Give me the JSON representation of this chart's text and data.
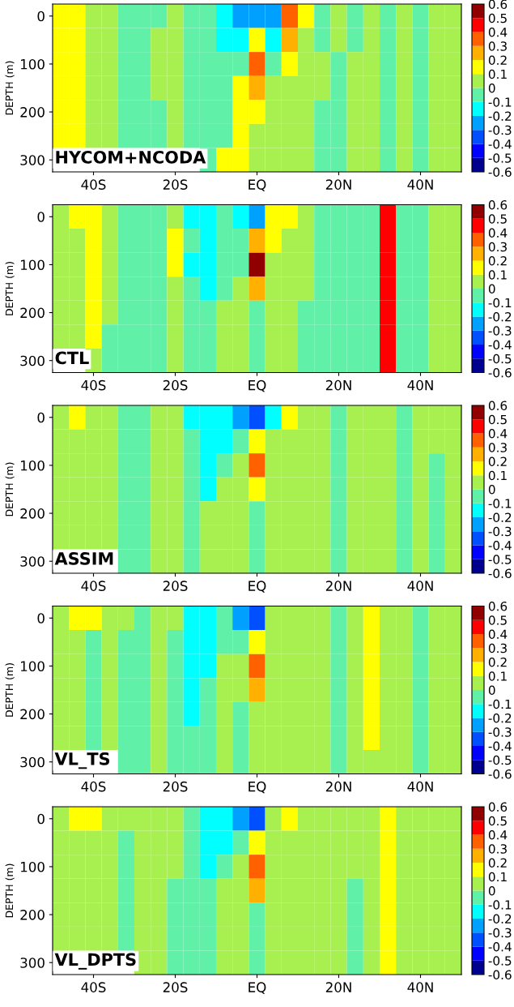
{
  "chart_data": [
    {
      "type": "heatmap",
      "ylabel": "DEPTH (m)",
      "annotations": [
        "HYCOM+NCODA"
      ],
      "categories": [
        null,
        null,
        "40S",
        null,
        null,
        null,
        null,
        "20S",
        null,
        null,
        null,
        null,
        "EQ",
        null,
        null,
        null,
        null,
        "20N",
        null,
        null,
        null,
        null,
        "40N",
        null,
        null
      ],
      "y_categories": [
        "0",
        null,
        "100",
        null,
        "200",
        null,
        "300"
      ],
      "clim": [
        -0.6,
        0.6
      ],
      "cticks": [
        -0.6,
        -0.5,
        -0.4,
        -0.3,
        -0.2,
        -0.1,
        0,
        0.1,
        0.2,
        0.3,
        0.4,
        0.5,
        0.6
      ],
      "cells": [
        [
          0.15,
          0.15,
          0.05,
          0.05,
          -0.05,
          -0.05,
          -0.05,
          0.05,
          -0.05,
          -0.05,
          -0.15,
          -0.25,
          -0.25,
          -0.25,
          0.35,
          0.15,
          -0.05,
          0.05,
          -0.05,
          0.05,
          -0.05,
          0.05,
          -0.05,
          0.05,
          0.05
        ],
        [
          0.15,
          0.15,
          0.05,
          0.05,
          -0.05,
          -0.05,
          0.05,
          0.05,
          -0.05,
          -0.05,
          -0.15,
          -0.15,
          0.15,
          -0.15,
          0.25,
          0.05,
          -0.05,
          0.05,
          -0.05,
          0.05,
          -0.05,
          0.05,
          -0.05,
          0.05,
          0.05
        ],
        [
          0.15,
          0.15,
          0.05,
          0.05,
          -0.05,
          -0.05,
          0.05,
          0.05,
          -0.05,
          -0.05,
          -0.05,
          -0.05,
          0.35,
          -0.05,
          0.15,
          0.05,
          0.05,
          -0.05,
          0.05,
          0.05,
          -0.05,
          0.05,
          -0.05,
          0.05,
          0.05
        ],
        [
          0.15,
          0.15,
          0.05,
          0.05,
          -0.05,
          -0.05,
          0.05,
          0.05,
          -0.05,
          -0.05,
          -0.05,
          0.15,
          0.25,
          0.05,
          0.05,
          0.05,
          0.05,
          -0.05,
          0.05,
          0.05,
          -0.05,
          0.05,
          -0.05,
          0.05,
          0.05
        ],
        [
          0.15,
          0.15,
          0.05,
          0.05,
          -0.05,
          -0.05,
          -0.05,
          0.05,
          -0.05,
          -0.05,
          -0.05,
          0.15,
          0.15,
          0.05,
          0.05,
          0.05,
          -0.05,
          -0.05,
          0.05,
          0.05,
          -0.05,
          0.05,
          -0.05,
          0.05,
          0.05
        ],
        [
          0.15,
          0.15,
          0.05,
          0.05,
          -0.05,
          -0.05,
          -0.05,
          0.05,
          -0.05,
          -0.05,
          -0.05,
          0.15,
          0.05,
          0.05,
          0.05,
          0.05,
          -0.05,
          -0.05,
          0.05,
          0.05,
          -0.05,
          0.05,
          -0.05,
          0.05,
          0.05
        ],
        [
          null,
          null,
          null,
          null,
          null,
          null,
          null,
          null,
          null,
          -0.05,
          0.15,
          0.15,
          0.05,
          0.05,
          0.05,
          0.05,
          -0.05,
          -0.05,
          0.05,
          0.05,
          -0.05,
          0.05,
          -0.05,
          0.05,
          0.05
        ]
      ]
    },
    {
      "type": "heatmap",
      "ylabel": "DEPTH (m)",
      "annotations": [
        "CTL"
      ],
      "categories": [
        null,
        null,
        "40S",
        null,
        null,
        null,
        null,
        "20S",
        null,
        null,
        null,
        null,
        "EQ",
        null,
        null,
        null,
        null,
        "20N",
        null,
        null,
        null,
        null,
        "40N",
        null,
        null
      ],
      "y_categories": [
        "0",
        null,
        "100",
        null,
        "200",
        null,
        "300"
      ],
      "clim": [
        -0.6,
        0.6
      ],
      "cticks": [
        -0.6,
        -0.5,
        -0.4,
        -0.3,
        -0.2,
        -0.1,
        0,
        0.1,
        0.2,
        0.3,
        0.4,
        0.5,
        0.6
      ],
      "cells": [
        [
          0.05,
          0.15,
          0.15,
          0.05,
          -0.05,
          -0.05,
          -0.05,
          0.05,
          -0.15,
          -0.15,
          -0.05,
          -0.15,
          -0.25,
          0.15,
          0.15,
          0.05,
          -0.05,
          -0.05,
          -0.05,
          -0.05,
          0.45,
          -0.05,
          -0.05,
          0.05,
          0.05
        ],
        [
          0.05,
          0.05,
          0.15,
          0.05,
          -0.05,
          -0.05,
          -0.05,
          0.15,
          -0.05,
          -0.15,
          -0.05,
          -0.05,
          0.25,
          0.15,
          0.05,
          0.05,
          -0.05,
          -0.05,
          -0.05,
          -0.05,
          0.45,
          -0.05,
          -0.05,
          0.05,
          0.05
        ],
        [
          0.05,
          0.05,
          0.15,
          0.05,
          -0.05,
          -0.05,
          -0.05,
          0.15,
          -0.15,
          -0.15,
          -0.05,
          -0.05,
          0.55,
          0.05,
          0.05,
          0.05,
          -0.05,
          -0.05,
          -0.05,
          -0.05,
          0.45,
          -0.05,
          -0.05,
          0.05,
          0.05
        ],
        [
          0.05,
          0.05,
          0.15,
          0.05,
          -0.05,
          -0.05,
          -0.05,
          0.05,
          -0.05,
          -0.15,
          -0.05,
          0.05,
          0.25,
          0.05,
          0.05,
          0.05,
          -0.05,
          -0.05,
          -0.05,
          -0.05,
          0.45,
          -0.05,
          -0.05,
          0.05,
          0.05
        ],
        [
          0.05,
          0.05,
          0.15,
          0.05,
          -0.05,
          -0.05,
          -0.05,
          0.05,
          -0.05,
          -0.05,
          0.05,
          0.05,
          -0.05,
          0.05,
          0.05,
          -0.05,
          -0.05,
          -0.05,
          -0.05,
          -0.05,
          0.45,
          -0.05,
          -0.05,
          0.05,
          0.05
        ],
        [
          0.05,
          0.05,
          0.15,
          -0.05,
          -0.05,
          -0.05,
          -0.05,
          0.05,
          -0.05,
          -0.05,
          0.05,
          0.05,
          -0.05,
          0.05,
          0.05,
          -0.05,
          -0.05,
          -0.05,
          -0.05,
          -0.05,
          0.45,
          -0.05,
          -0.05,
          0.05,
          0.05
        ],
        [
          null,
          null,
          0.05,
          -0.05,
          -0.05,
          -0.05,
          -0.05,
          0.05,
          -0.05,
          -0.05,
          0.05,
          0.05,
          -0.05,
          0.05,
          0.05,
          -0.05,
          -0.05,
          -0.05,
          -0.05,
          -0.05,
          0.45,
          -0.05,
          -0.05,
          0.05,
          0.05
        ]
      ]
    },
    {
      "type": "heatmap",
      "ylabel": "DEPTH (m)",
      "annotations": [
        "ASSIM"
      ],
      "categories": [
        null,
        null,
        "40S",
        null,
        null,
        null,
        null,
        "20S",
        null,
        null,
        null,
        null,
        "EQ",
        null,
        null,
        null,
        null,
        "20N",
        null,
        null,
        null,
        null,
        "40N",
        null,
        null
      ],
      "y_categories": [
        "0",
        null,
        "100",
        null,
        "200",
        null,
        "300"
      ],
      "clim": [
        -0.6,
        0.6
      ],
      "cticks": [
        -0.6,
        -0.5,
        -0.4,
        -0.3,
        -0.2,
        -0.1,
        0,
        0.1,
        0.2,
        0.3,
        0.4,
        0.5,
        0.6
      ],
      "cells": [
        [
          0.05,
          0.15,
          0.05,
          0.05,
          -0.05,
          -0.05,
          0.05,
          0.05,
          -0.15,
          -0.15,
          -0.15,
          -0.25,
          -0.35,
          -0.15,
          0.15,
          0.05,
          0.05,
          -0.05,
          0.05,
          0.05,
          0.05,
          -0.05,
          0.05,
          0.05,
          0.05
        ],
        [
          0.05,
          0.05,
          0.05,
          0.05,
          -0.05,
          -0.05,
          0.05,
          0.05,
          -0.05,
          -0.15,
          -0.15,
          -0.05,
          0.15,
          0.05,
          0.05,
          0.05,
          0.05,
          -0.05,
          0.05,
          0.05,
          0.05,
          -0.05,
          0.05,
          0.05,
          0.05
        ],
        [
          0.05,
          0.05,
          0.05,
          0.05,
          -0.05,
          -0.05,
          0.05,
          0.05,
          -0.05,
          -0.15,
          -0.05,
          0.05,
          0.35,
          0.05,
          0.05,
          0.05,
          0.05,
          -0.05,
          0.05,
          0.05,
          0.05,
          -0.05,
          0.05,
          -0.05,
          0.05
        ],
        [
          0.05,
          0.05,
          0.05,
          0.05,
          -0.05,
          -0.05,
          0.05,
          0.05,
          -0.05,
          -0.15,
          0.05,
          0.05,
          0.15,
          0.05,
          0.05,
          0.05,
          0.05,
          -0.05,
          0.05,
          0.05,
          0.05,
          -0.05,
          0.05,
          -0.05,
          0.05
        ],
        [
          0.05,
          0.05,
          0.05,
          0.05,
          -0.05,
          -0.05,
          0.05,
          0.05,
          -0.05,
          0.05,
          0.05,
          0.05,
          -0.05,
          0.05,
          0.05,
          0.05,
          0.05,
          -0.05,
          0.05,
          0.05,
          0.05,
          -0.05,
          0.05,
          -0.05,
          0.05
        ],
        [
          0.05,
          0.05,
          0.05,
          0.05,
          -0.05,
          -0.05,
          0.05,
          0.05,
          -0.05,
          0.05,
          0.05,
          0.05,
          -0.05,
          0.05,
          0.05,
          0.05,
          0.05,
          -0.05,
          0.05,
          0.05,
          0.05,
          -0.05,
          0.05,
          -0.05,
          0.05
        ],
        [
          null,
          null,
          null,
          null,
          -0.05,
          -0.05,
          0.05,
          0.05,
          -0.05,
          0.05,
          0.05,
          0.05,
          -0.05,
          0.05,
          0.05,
          0.05,
          0.05,
          -0.05,
          0.05,
          0.05,
          0.05,
          -0.05,
          0.05,
          -0.05,
          0.05
        ]
      ]
    },
    {
      "type": "heatmap",
      "ylabel": "DEPTH (m)",
      "annotations": [
        "VL_TS"
      ],
      "categories": [
        null,
        null,
        "40S",
        null,
        null,
        null,
        null,
        "20S",
        null,
        null,
        null,
        null,
        "EQ",
        null,
        null,
        null,
        null,
        "20N",
        null,
        null,
        null,
        null,
        "40N",
        null,
        null
      ],
      "y_categories": [
        "0",
        null,
        "100",
        null,
        "200",
        null,
        "300"
      ],
      "clim": [
        -0.6,
        0.6
      ],
      "cticks": [
        -0.6,
        -0.5,
        -0.4,
        -0.3,
        -0.2,
        -0.1,
        0,
        0.1,
        0.2,
        0.3,
        0.4,
        0.5,
        0.6
      ],
      "cells": [
        [
          0.05,
          0.15,
          0.15,
          0.05,
          0.05,
          -0.05,
          0.05,
          0.05,
          -0.15,
          -0.15,
          -0.05,
          -0.25,
          -0.35,
          0.05,
          0.05,
          0.05,
          0.05,
          -0.05,
          0.05,
          0.15,
          0.05,
          0.05,
          -0.05,
          0.05,
          0.05
        ],
        [
          0.05,
          0.05,
          -0.05,
          0.05,
          -0.05,
          -0.05,
          0.05,
          -0.05,
          -0.15,
          -0.15,
          -0.05,
          -0.05,
          0.15,
          0.05,
          0.05,
          0.05,
          0.05,
          -0.05,
          0.05,
          0.15,
          0.05,
          0.05,
          -0.05,
          0.05,
          0.05
        ],
        [
          0.05,
          0.05,
          -0.05,
          0.05,
          -0.05,
          -0.05,
          0.05,
          -0.05,
          -0.15,
          -0.15,
          0.05,
          0.05,
          0.35,
          0.05,
          0.05,
          0.05,
          0.05,
          -0.05,
          0.05,
          0.15,
          0.05,
          0.05,
          -0.05,
          0.05,
          0.05
        ],
        [
          0.05,
          0.05,
          -0.05,
          0.05,
          -0.05,
          -0.05,
          0.05,
          -0.05,
          -0.15,
          -0.05,
          0.05,
          0.05,
          0.25,
          0.05,
          0.05,
          0.05,
          0.05,
          -0.05,
          0.05,
          0.15,
          0.05,
          0.05,
          -0.05,
          0.05,
          0.05
        ],
        [
          0.05,
          0.05,
          -0.05,
          0.05,
          -0.05,
          -0.05,
          0.05,
          -0.05,
          -0.15,
          -0.05,
          0.05,
          -0.05,
          0.05,
          0.05,
          0.05,
          0.05,
          0.05,
          -0.05,
          0.05,
          0.15,
          0.05,
          0.05,
          -0.05,
          0.05,
          0.05
        ],
        [
          0.05,
          0.05,
          -0.05,
          0.05,
          -0.05,
          -0.05,
          0.05,
          -0.05,
          -0.05,
          -0.05,
          0.05,
          -0.05,
          0.05,
          0.05,
          0.05,
          0.05,
          0.05,
          -0.05,
          0.05,
          0.15,
          0.05,
          0.05,
          -0.05,
          0.05,
          0.05
        ],
        [
          null,
          null,
          null,
          null,
          -0.05,
          -0.05,
          0.05,
          -0.05,
          -0.05,
          -0.05,
          0.05,
          -0.05,
          0.05,
          0.05,
          0.05,
          0.05,
          0.05,
          -0.05,
          0.05,
          0.05,
          0.05,
          0.05,
          -0.05,
          0.05,
          0.05
        ]
      ]
    },
    {
      "type": "heatmap",
      "ylabel": "DEPTH (m)",
      "annotations": [
        "VL_DPTS"
      ],
      "categories": [
        null,
        null,
        "40S",
        null,
        null,
        null,
        null,
        "20S",
        null,
        null,
        null,
        null,
        "EQ",
        null,
        null,
        null,
        null,
        "20N",
        null,
        null,
        null,
        null,
        "40N",
        null,
        null
      ],
      "y_categories": [
        "0",
        null,
        "100",
        null,
        "200",
        null,
        "300"
      ],
      "clim": [
        -0.6,
        0.6
      ],
      "cticks": [
        -0.6,
        -0.5,
        -0.4,
        -0.3,
        -0.2,
        -0.1,
        0,
        0.1,
        0.2,
        0.3,
        0.4,
        0.5,
        0.6
      ],
      "cells": [
        [
          0.05,
          0.15,
          0.15,
          0.05,
          0.05,
          0.05,
          0.05,
          0.05,
          -0.05,
          -0.15,
          -0.15,
          -0.25,
          -0.35,
          0.05,
          0.15,
          0.05,
          0.05,
          0.05,
          0.05,
          0.05,
          0.15,
          0.05,
          0.05,
          0.05,
          0.05
        ],
        [
          0.05,
          0.05,
          0.05,
          0.05,
          -0.05,
          0.05,
          0.05,
          0.05,
          -0.05,
          -0.15,
          -0.15,
          -0.05,
          0.15,
          0.05,
          0.05,
          0.05,
          0.05,
          0.05,
          0.05,
          0.05,
          0.15,
          0.05,
          0.05,
          0.05,
          0.05
        ],
        [
          0.05,
          0.05,
          0.05,
          0.05,
          -0.05,
          0.05,
          0.05,
          0.05,
          -0.05,
          -0.15,
          -0.05,
          0.05,
          0.35,
          0.05,
          0.05,
          0.05,
          0.05,
          0.05,
          0.05,
          0.05,
          0.15,
          0.05,
          0.05,
          0.05,
          0.05
        ],
        [
          0.05,
          0.05,
          0.05,
          0.05,
          -0.05,
          0.05,
          0.05,
          -0.05,
          -0.05,
          -0.05,
          0.05,
          0.05,
          0.25,
          0.05,
          0.05,
          0.05,
          0.05,
          0.05,
          -0.05,
          0.05,
          0.15,
          0.05,
          0.05,
          0.05,
          0.05
        ],
        [
          0.05,
          0.05,
          0.05,
          0.05,
          -0.05,
          0.05,
          0.05,
          -0.05,
          -0.05,
          -0.05,
          0.05,
          0.05,
          -0.05,
          0.05,
          0.05,
          0.05,
          0.05,
          0.05,
          -0.05,
          0.05,
          0.15,
          0.05,
          0.05,
          0.05,
          0.05
        ],
        [
          0.05,
          0.05,
          0.05,
          0.05,
          -0.05,
          0.05,
          0.05,
          -0.05,
          -0.05,
          -0.05,
          0.05,
          0.05,
          -0.05,
          0.05,
          0.05,
          0.05,
          0.05,
          0.05,
          -0.05,
          0.05,
          0.15,
          0.05,
          0.05,
          0.05,
          0.05
        ],
        [
          null,
          null,
          null,
          null,
          null,
          0.05,
          0.05,
          -0.05,
          -0.05,
          -0.05,
          0.05,
          0.05,
          -0.05,
          0.05,
          0.05,
          0.05,
          0.05,
          0.05,
          -0.05,
          0.05,
          0.15,
          0.05,
          0.05,
          0.05,
          0.05
        ]
      ]
    }
  ]
}
